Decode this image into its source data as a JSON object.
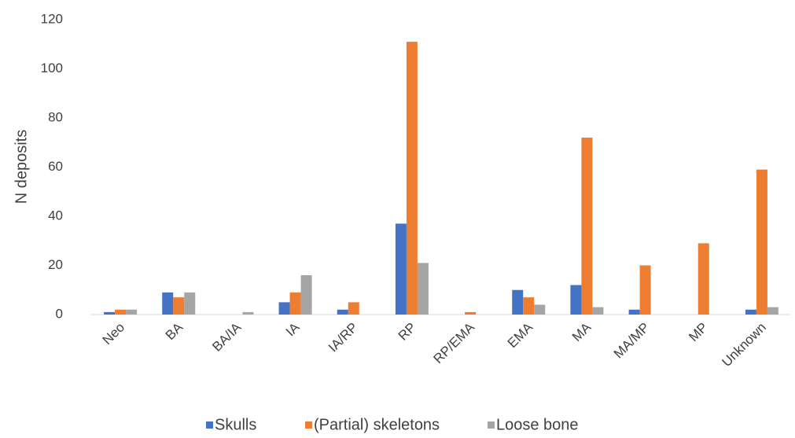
{
  "chart_data": {
    "type": "bar",
    "y_label": "N deposits",
    "categories": [
      "Neo",
      "BA",
      "BA/IA",
      "IA",
      "IA/RP",
      "RP",
      "RP/EMA",
      "EMA",
      "MA",
      "MA/MP",
      "MP",
      "Unknown"
    ],
    "series": [
      {
        "name": "Skulls",
        "color": "#4472c4",
        "values": [
          1,
          9,
          0,
          5,
          2,
          37,
          0,
          10,
          12,
          2,
          0,
          2
        ]
      },
      {
        "name": "(Partial) skeletons",
        "color": "#ed7d31",
        "values": [
          2,
          7,
          0,
          9,
          5,
          111,
          1,
          7,
          72,
          20,
          29,
          59
        ]
      },
      {
        "name": "Loose bone",
        "color": "#a5a5a5",
        "values": [
          2,
          9,
          1,
          16,
          0,
          21,
          0,
          4,
          3,
          0,
          0,
          3
        ]
      }
    ],
    "ylim": [
      0,
      120
    ],
    "yticks": [
      0,
      20,
      40,
      60,
      80,
      100,
      120
    ],
    "grid": false
  }
}
